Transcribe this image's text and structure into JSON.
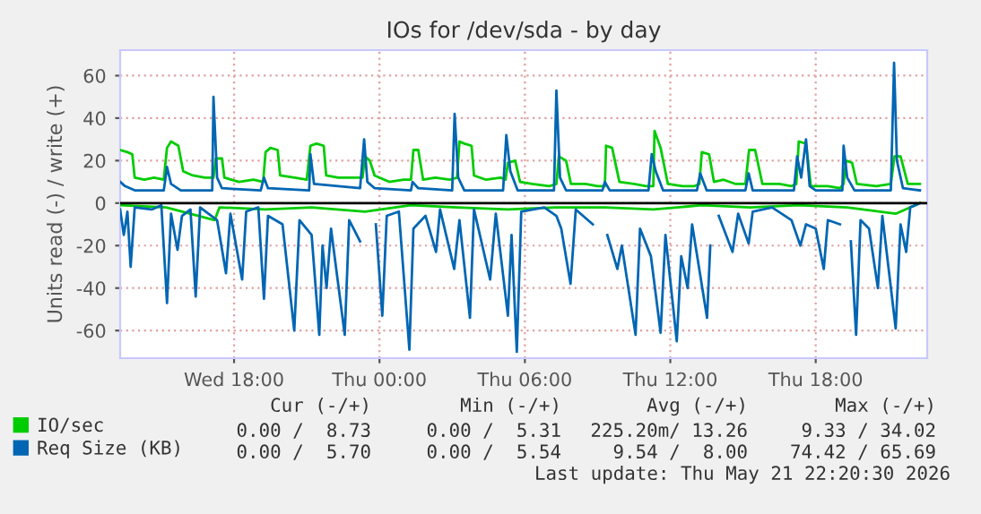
{
  "chart_data": {
    "type": "line",
    "title": "IOs for /dev/sda - by day",
    "ylabel": "Units read (-) / write (+)",
    "xlim": [
      "2026-05-20T13:18",
      "2026-05-21T22:36"
    ],
    "xticks": [
      {
        "value": "2026-05-20T18:00",
        "label": "Wed 18:00"
      },
      {
        "value": "2026-05-21T00:00",
        "label": "Thu 00:00"
      },
      {
        "value": "2026-05-21T06:00",
        "label": "Thu 06:00"
      },
      {
        "value": "2026-05-21T12:00",
        "label": "Thu 12:00"
      },
      {
        "value": "2026-05-21T18:00",
        "label": "Thu 18:00"
      }
    ],
    "ylim": [
      -73,
      72
    ],
    "yticks": [
      -60,
      -40,
      -20,
      0,
      20,
      40,
      60
    ],
    "grid": true,
    "legend": "bottom",
    "ref_lines": [
      {
        "axis": "y",
        "value": 0,
        "color": "#000000"
      }
    ],
    "series": [
      {
        "name": "IO/sec",
        "color": "#00cc00",
        "x": [
          "2026-05-20T13:18",
          "2026-05-20T13:36",
          "2026-05-20T13:48",
          "2026-05-20T13:54",
          "2026-05-20T14:18",
          "2026-05-20T14:42",
          "2026-05-20T15:06",
          "2026-05-20T15:14",
          "2026-05-20T15:24",
          "2026-05-20T15:42",
          "2026-05-20T15:54",
          "2026-05-20T16:18",
          "2026-05-20T16:48",
          "2026-05-20T17:09",
          "2026-05-20T17:15",
          "2026-05-20T17:30",
          "2026-05-20T17:36",
          "2026-05-20T18:12",
          "2026-05-20T18:48",
          "2026-05-20T19:12",
          "2026-05-20T19:18",
          "2026-05-20T19:30",
          "2026-05-20T19:48",
          "2026-05-20T19:54",
          "2026-05-20T20:30",
          "2026-05-20T21:00",
          "2026-05-20T21:09",
          "2026-05-20T21:24",
          "2026-05-20T21:42",
          "2026-05-20T21:48",
          "2026-05-20T22:18",
          "2026-05-20T23:00",
          "2026-05-20T23:18",
          "2026-05-20T23:24",
          "2026-05-20T23:36",
          "2026-05-20T23:48",
          "2026-05-21T00:24",
          "2026-05-21T01:00",
          "2026-05-21T01:18",
          "2026-05-21T01:24",
          "2026-05-21T01:36",
          "2026-05-21T01:48",
          "2026-05-21T02:18",
          "2026-05-21T02:54",
          "2026-05-21T03:12",
          "2026-05-21T03:18",
          "2026-05-21T03:30",
          "2026-05-21T03:48",
          "2026-05-21T03:54",
          "2026-05-21T04:24",
          "2026-05-21T05:00",
          "2026-05-21T05:12",
          "2026-05-21T05:18",
          "2026-05-21T05:36",
          "2026-05-21T05:48",
          "2026-05-21T06:18",
          "2026-05-21T07:00",
          "2026-05-21T07:18",
          "2026-05-21T07:24",
          "2026-05-21T07:42",
          "2026-05-21T07:54",
          "2026-05-21T08:30",
          "2026-05-21T09:00",
          "2026-05-21T09:18",
          "2026-05-21T09:21",
          "2026-05-21T09:36",
          "2026-05-21T09:54",
          "2026-05-21T10:30",
          "2026-05-21T11:00",
          "2026-05-21T11:18",
          "2026-05-21T11:21",
          "2026-05-21T11:36",
          "2026-05-21T11:54",
          "2026-05-21T12:30",
          "2026-05-21T13:00",
          "2026-05-21T13:12",
          "2026-05-21T13:18",
          "2026-05-21T13:36",
          "2026-05-21T13:48",
          "2026-05-21T14:12",
          "2026-05-21T14:42",
          "2026-05-21T15:06",
          "2026-05-21T15:15",
          "2026-05-21T15:30",
          "2026-05-21T15:48",
          "2026-05-21T16:30",
          "2026-05-21T17:00",
          "2026-05-21T17:12",
          "2026-05-21T17:18",
          "2026-05-21T17:36",
          "2026-05-21T17:48",
          "2026-05-21T18:30",
          "2026-05-21T19:00",
          "2026-05-21T19:09",
          "2026-05-21T19:15",
          "2026-05-21T19:30",
          "2026-05-21T19:42",
          "2026-05-21T20:30",
          "2026-05-21T21:06",
          "2026-05-21T21:15",
          "2026-05-21T21:30",
          "2026-05-21T21:48",
          "2026-05-21T22:18"
        ],
        "values": [
          25,
          24,
          23,
          12,
          11,
          12,
          11,
          26,
          29,
          27,
          15,
          13,
          12,
          12,
          21,
          21,
          12,
          10,
          11,
          10,
          24,
          26,
          25,
          13,
          12,
          11,
          27,
          28,
          27,
          13,
          12,
          12,
          12,
          22,
          20,
          13,
          10,
          11,
          11,
          25,
          25,
          11,
          12,
          11,
          12,
          29,
          28,
          27,
          13,
          11,
          12,
          11,
          19,
          20,
          10,
          9,
          8,
          9,
          22,
          20,
          9,
          9,
          8,
          8,
          27,
          26,
          10,
          9,
          8,
          8,
          34,
          26,
          9,
          8,
          8,
          9,
          24,
          23,
          10,
          11,
          9,
          9,
          25,
          25,
          9,
          9,
          8,
          9,
          29,
          28,
          8,
          8,
          7,
          9,
          20,
          19,
          9,
          8,
          9,
          22,
          22,
          9,
          9
        ]
      },
      {
        "color": "#00cc00",
        "x": [
          "2026-05-20T13:18",
          "2026-05-20T15:12",
          "2026-05-20T17:12",
          "2026-05-20T17:24",
          "2026-05-20T19:18",
          "2026-05-20T21:12",
          "2026-05-20T23:24",
          "2026-05-21T01:18",
          "2026-05-21T03:12",
          "2026-05-21T05:18",
          "2026-05-21T07:18",
          "2026-05-21T09:18",
          "2026-05-21T11:18",
          "2026-05-21T13:18",
          "2026-05-21T15:18",
          "2026-05-21T17:18",
          "2026-05-21T19:18",
          "2026-05-21T21:18",
          "2026-05-21T22:18"
        ],
        "values": [
          -1,
          -2,
          -8,
          -2,
          -3,
          -2,
          -4,
          -1,
          -2,
          -3,
          -2,
          -2,
          -3,
          -1,
          -2,
          -1,
          -2,
          -5,
          0
        ]
      },
      {
        "name": "Req Size (KB)",
        "color": "#0066b3",
        "x": [
          "2026-05-20T13:18",
          "2026-05-20T13:30",
          "2026-05-20T13:54",
          "2026-05-20T15:06",
          "2026-05-20T15:14",
          "2026-05-20T15:24",
          "2026-05-20T15:48",
          "2026-05-20T17:06",
          "2026-05-20T17:09",
          "2026-05-20T17:18",
          "2026-05-20T17:30",
          "2026-05-20T19:06",
          "2026-05-20T19:14",
          "2026-05-20T19:24",
          "2026-05-20T21:06",
          "2026-05-20T21:09",
          "2026-05-20T21:18",
          "2026-05-20T23:12",
          "2026-05-20T23:22",
          "2026-05-20T23:30",
          "2026-05-20T23:48",
          "2026-05-21T01:18",
          "2026-05-21T01:22",
          "2026-05-21T01:36",
          "2026-05-21T03:00",
          "2026-05-21T03:06",
          "2026-05-21T03:15",
          "2026-05-21T03:30",
          "2026-05-21T05:06",
          "2026-05-21T05:14",
          "2026-05-21T05:24",
          "2026-05-21T05:42",
          "2026-05-21T07:12",
          "2026-05-21T07:18",
          "2026-05-21T07:27",
          "2026-05-21T07:42",
          "2026-05-21T09:12",
          "2026-05-21T09:18",
          "2026-05-21T09:30",
          "2026-05-21T11:06",
          "2026-05-21T11:14",
          "2026-05-21T11:24",
          "2026-05-21T11:42",
          "2026-05-21T13:06",
          "2026-05-21T13:14",
          "2026-05-21T13:30",
          "2026-05-21T15:06",
          "2026-05-21T15:14",
          "2026-05-21T15:24",
          "2026-05-21T17:06",
          "2026-05-21T17:14",
          "2026-05-21T17:24",
          "2026-05-21T17:36",
          "2026-05-21T17:45",
          "2026-05-21T18:00",
          "2026-05-21T19:06",
          "2026-05-21T19:09",
          "2026-05-21T19:18",
          "2026-05-21T19:36",
          "2026-05-21T21:06",
          "2026-05-21T21:14",
          "2026-05-21T21:21",
          "2026-05-21T21:36",
          "2026-05-21T22:18"
        ],
        "values": [
          10,
          8,
          6,
          6,
          17,
          9,
          6,
          6,
          50,
          12,
          7,
          6,
          12,
          7,
          6,
          23,
          9,
          7,
          30,
          10,
          7,
          6,
          10,
          7,
          6,
          42,
          12,
          6,
          6,
          32,
          15,
          6,
          6,
          53,
          12,
          6,
          6,
          10,
          6,
          6,
          23,
          15,
          6,
          6,
          14,
          6,
          6,
          14,
          6,
          6,
          22,
          12,
          30,
          8,
          6,
          6,
          27,
          12,
          6,
          6,
          66,
          20,
          7,
          6
        ]
      },
      {
        "color": "#0066b3",
        "x": [
          "2026-05-20T13:18",
          "2026-05-20T13:27",
          "2026-05-20T13:36",
          "2026-05-20T13:44",
          "2026-05-20T13:54",
          "2026-05-20T14:36",
          "2026-05-20T15:00",
          "2026-05-20T15:14",
          "2026-05-20T15:24",
          "2026-05-20T15:40",
          "2026-05-20T15:51",
          "2026-05-20T16:12",
          "2026-05-20T16:25",
          "2026-05-20T16:36",
          "2026-05-20T17:18",
          "2026-05-20T17:40",
          "2026-05-20T17:51",
          "2026-05-20T18:20",
          "2026-05-20T18:30",
          "2026-05-20T19:00",
          "2026-05-20T19:14",
          "2026-05-20T19:24",
          "2026-05-20T20:00",
          "2026-05-20T20:29",
          "2026-05-20T20:42",
          "2026-05-20T21:12",
          "2026-05-20T21:31",
          "2026-05-20T21:39",
          "2026-05-20T21:49",
          "2026-05-20T22:00",
          "2026-05-20T22:34",
          "2026-05-20T22:45",
          "2026-05-20T23:12",
          "2026-05-20T23:40",
          "2026-05-20T23:51",
          "2026-05-21T00:07",
          "2026-05-21T00:18",
          "2026-05-21T00:48",
          "2026-05-21T01:14",
          "2026-05-21T01:24",
          "2026-05-21T01:54",
          "2026-05-21T02:20",
          "2026-05-21T02:30",
          "2026-05-21T03:05",
          "2026-05-21T03:18",
          "2026-05-21T03:44",
          "2026-05-21T03:54",
          "2026-05-21T04:34",
          "2026-05-21T04:48",
          "2026-05-21T05:18",
          "2026-05-21T05:27",
          "2026-05-21T05:40",
          "2026-05-21T05:51",
          "2026-05-21T06:48",
          "2026-05-21T07:18",
          "2026-05-21T07:30",
          "2026-05-21T07:53",
          "2026-05-21T08:06",
          "2026-05-21T08:48",
          "2026-05-21T09:14",
          "2026-05-21T09:24",
          "2026-05-21T09:49",
          "2026-05-21T10:00",
          "2026-05-21T10:34",
          "2026-05-21T10:45",
          "2026-05-21T11:12",
          "2026-05-21T11:36",
          "2026-05-21T11:48",
          "2026-05-21T12:16",
          "2026-05-21T12:27",
          "2026-05-21T12:43",
          "2026-05-21T12:54",
          "2026-05-21T13:31",
          "2026-05-21T13:39",
          "2026-05-21T13:49",
          "2026-05-21T14:00",
          "2026-05-21T14:34",
          "2026-05-21T14:48",
          "2026-05-21T15:14",
          "2026-05-21T15:24",
          "2026-05-21T16:12",
          "2026-05-21T17:00",
          "2026-05-21T17:22",
          "2026-05-21T17:36",
          "2026-05-21T18:00",
          "2026-05-21T18:20",
          "2026-05-21T18:30",
          "2026-05-21T19:00",
          "2026-05-21T19:18",
          "2026-05-21T19:27",
          "2026-05-21T19:40",
          "2026-05-21T19:51",
          "2026-05-21T20:12",
          "2026-05-21T20:34",
          "2026-05-21T20:45",
          "2026-05-21T21:18",
          "2026-05-21T21:30",
          "2026-05-21T21:44",
          "2026-05-21T21:54",
          "2026-05-21T22:18"
        ],
        "values": [
          -3,
          -15,
          -4,
          -30,
          -2,
          -3,
          -1,
          -47,
          -5,
          -22,
          -6,
          -3,
          -44,
          -2,
          -8,
          -33,
          -5,
          -36,
          -4,
          -2,
          -45,
          -6,
          -10,
          -60,
          -8,
          -15,
          -62,
          -20,
          -40,
          -12,
          -62,
          -8,
          -18,
          null,
          -10,
          -53,
          -6,
          -4,
          -69,
          -12,
          -6,
          -23,
          -3,
          -31,
          -8,
          -54,
          -3,
          -36,
          -5,
          -53,
          -15,
          -70,
          -4,
          -2,
          -6,
          -12,
          -38,
          -3,
          -10,
          null,
          -15,
          -31,
          -20,
          -62,
          -12,
          -25,
          -61,
          -15,
          -65,
          -25,
          -40,
          -10,
          -54,
          -20,
          null,
          -6,
          -23,
          -5,
          -19,
          -4,
          -2,
          -8,
          -20,
          -10,
          -12,
          -31,
          -8,
          -10,
          null,
          -18,
          -62,
          -8,
          -12,
          -40,
          -6,
          -59,
          -10,
          -23,
          -2,
          0
        ]
      }
    ],
    "annotations": [
      "Cur (-/+)",
      "Min (-/+)",
      "Avg (-/+)",
      "Max (-/+)",
      "0.00 /  8.73",
      "0.00 /  5.31",
      "225.20m/ 13.26",
      "9.33 / 34.02",
      "0.00 /  5.70",
      "0.00 /  5.54",
      "9.54 /  8.00",
      "74.42 / 65.69",
      "Last update: Thu May 21 22:20:30 2026"
    ]
  }
}
